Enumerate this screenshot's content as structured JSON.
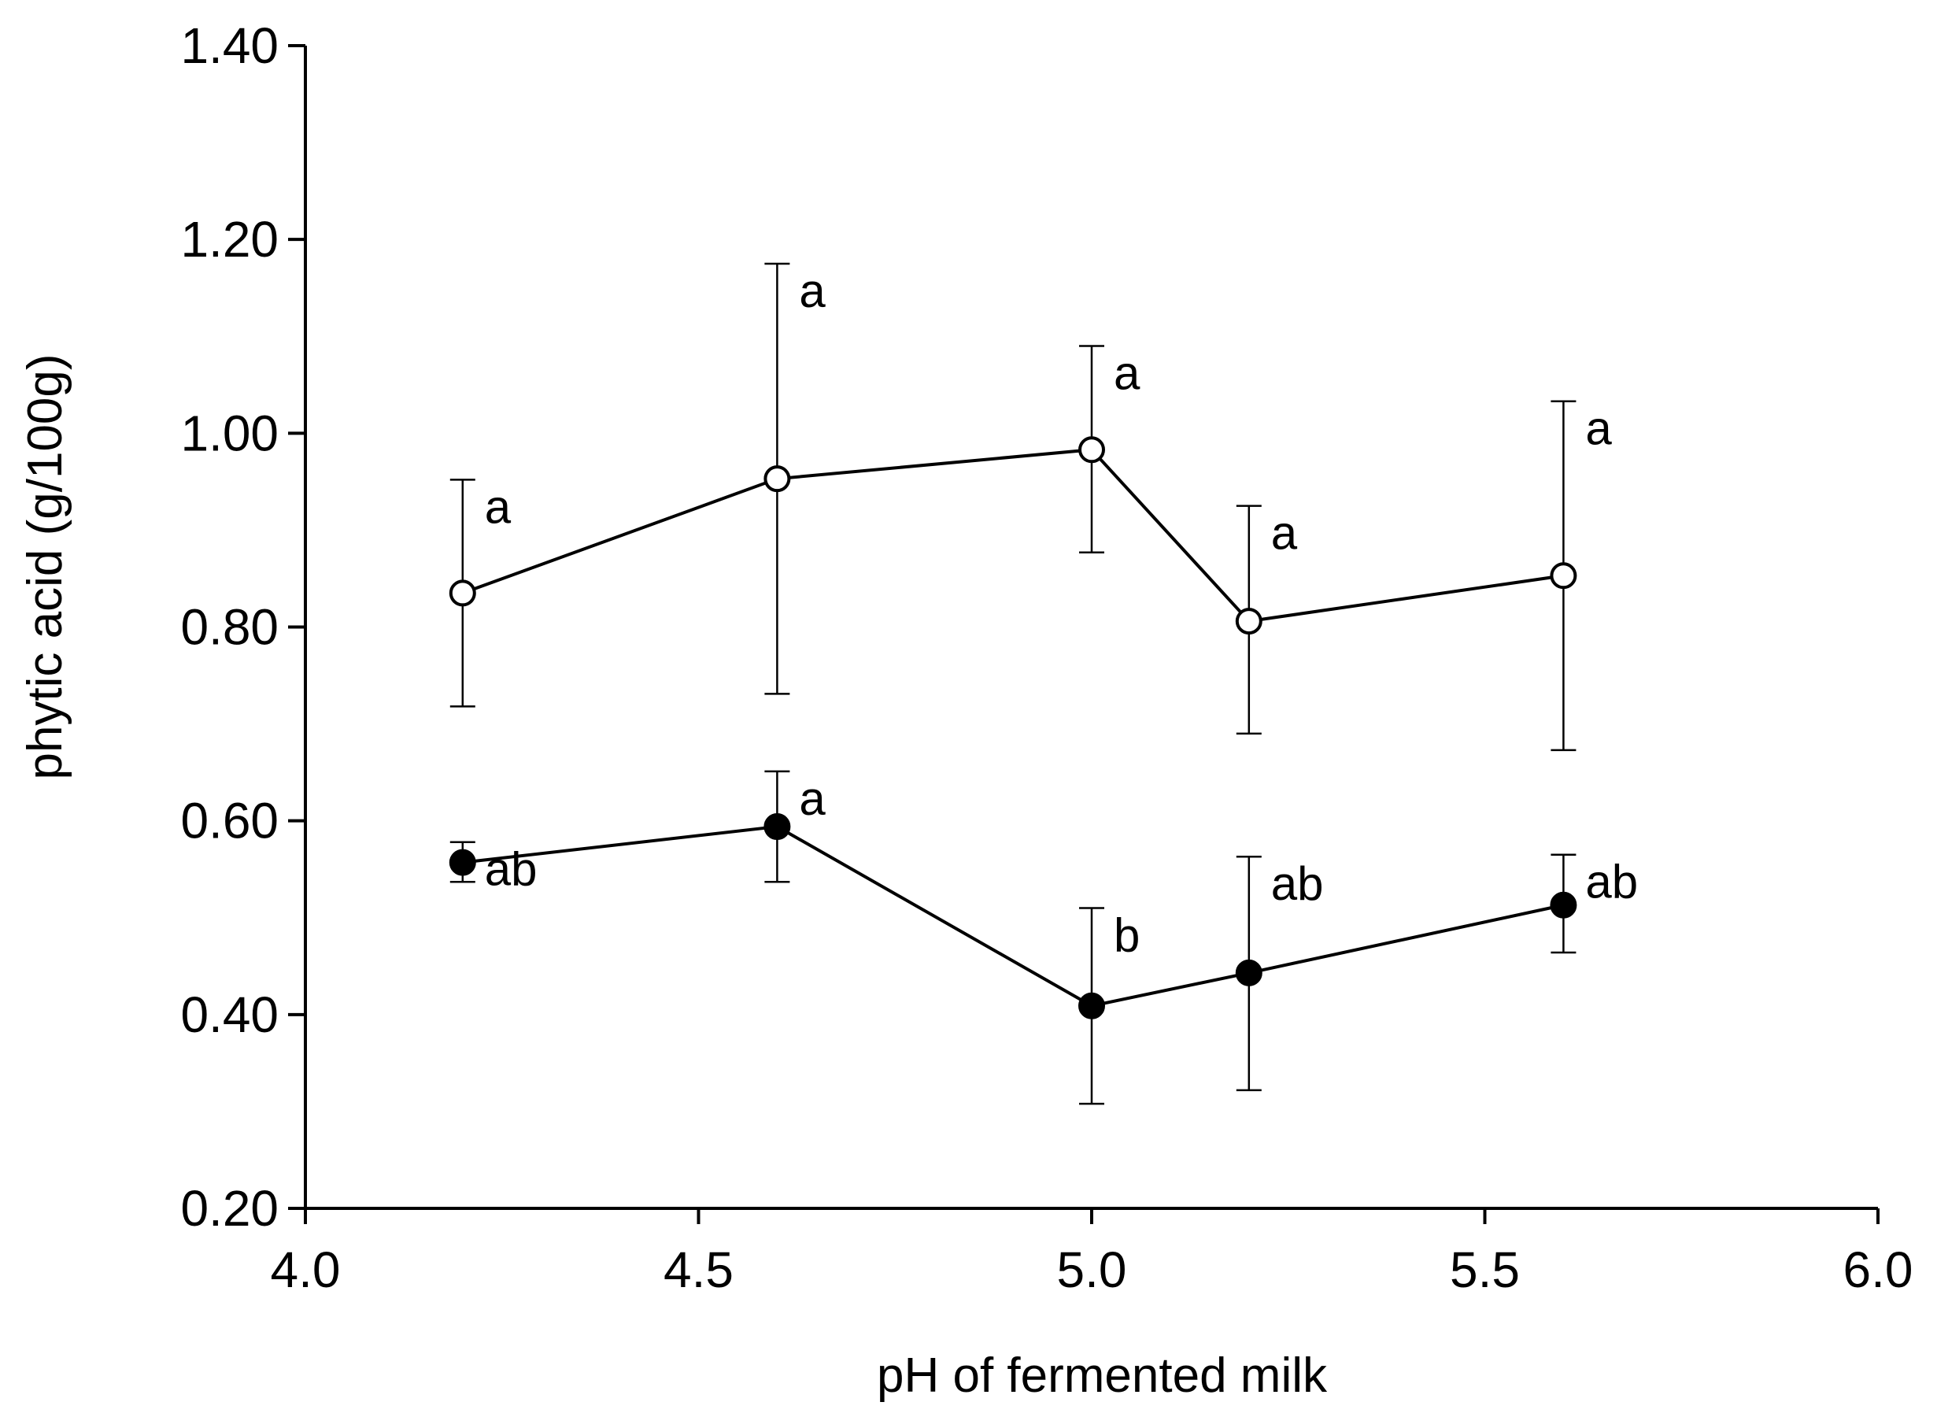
{
  "chart_data": {
    "type": "scatter",
    "title": "",
    "xlabel": "pH of fermented milk",
    "ylabel": "phytic acid (g/100g)",
    "xlim": [
      4.0,
      6.0
    ],
    "ylim": [
      0.2,
      1.4
    ],
    "xticks": [
      "4.0",
      "4.5",
      "5.0",
      "5.5",
      "6.0"
    ],
    "yticks": [
      "0.20",
      "0.40",
      "0.60",
      "0.80",
      "1.00",
      "1.20",
      "1.40"
    ],
    "grid": false,
    "legend": "none",
    "series": [
      {
        "marker": "open-circle",
        "line": true,
        "color": "#000000",
        "x": [
          4.2,
          4.6,
          5.0,
          5.2,
          5.6
        ],
        "y": [
          0.835,
          0.953,
          0.983,
          0.806,
          0.853
        ],
        "err_low": [
          0.718,
          0.731,
          0.877,
          0.69,
          0.673
        ],
        "err_high": [
          0.952,
          1.175,
          1.09,
          0.925,
          1.033
        ],
        "labels": [
          "a",
          "a",
          "a",
          "a",
          "a"
        ]
      },
      {
        "marker": "filled-circle",
        "line": true,
        "color": "#000000",
        "x": [
          4.2,
          4.6,
          5.0,
          5.2,
          5.6
        ],
        "y": [
          0.557,
          0.594,
          0.409,
          0.443,
          0.513
        ],
        "err_low": [
          0.537,
          0.537,
          0.308,
          0.322,
          0.464
        ],
        "err_high": [
          0.578,
          0.651,
          0.51,
          0.563,
          0.565
        ],
        "labels": [
          "ab",
          "a",
          "b",
          "ab",
          "ab"
        ]
      }
    ]
  }
}
